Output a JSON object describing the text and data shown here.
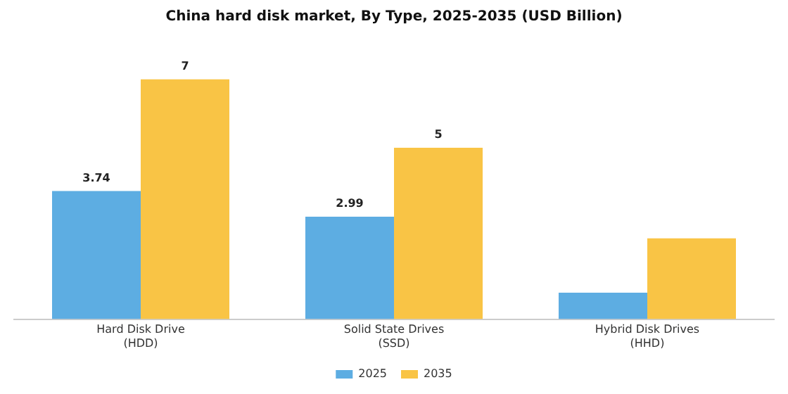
{
  "chart_data": {
    "type": "bar",
    "title": "China hard disk market, By Type, 2025-2035 (USD Billion)",
    "categories": [
      "Hard Disk Drive\n(HDD)",
      "Solid State Drives\n(SSD)",
      "Hybrid Disk Drives\n(HHD)"
    ],
    "series": [
      {
        "name": "2025",
        "color": "#5dade2",
        "values": [
          3.74,
          2.99,
          0.77
        ],
        "value_labels": [
          "3.74",
          "2.99",
          null
        ]
      },
      {
        "name": "2035",
        "color": "#f9c445",
        "values": [
          7,
          5,
          2.36
        ],
        "value_labels": [
          "7",
          "5",
          null
        ]
      }
    ],
    "legend": "bottom",
    "grid": false
  }
}
